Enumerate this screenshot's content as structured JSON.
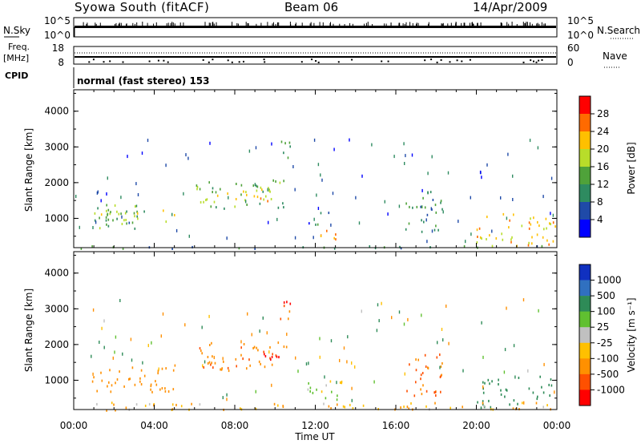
{
  "header": {
    "station": "Syowa South (fitACF)",
    "beam": "Beam 06",
    "date": "14/Apr/2009"
  },
  "status_panels": {
    "nsky_label": "N.Sky",
    "nsky_ticks": [
      "10^5",
      "10^0"
    ],
    "nsearch_label": "N.Search",
    "nsearch_ticks": [
      "10^5",
      "10^0"
    ],
    "freq_label_line1": "Freq.",
    "freq_label_line2": "[MHz]",
    "freq_ticks": [
      "18",
      "8"
    ],
    "nave_label": "Nave",
    "nave_ticks": [
      "60",
      "0"
    ],
    "cpid_label": "CPID",
    "cpid_text": "normal (fast stereo) 153"
  },
  "axes": {
    "ylabel": "Slant Range [km]",
    "xlabel": "Time UT",
    "yticks": [
      "4000",
      "3000",
      "2000",
      "1000"
    ],
    "xticks": [
      "00:00",
      "04:00",
      "08:00",
      "12:00",
      "16:00",
      "20:00",
      "00:00"
    ]
  },
  "colorbars": {
    "power": {
      "label": "Power [dB]",
      "ticks": [
        "28",
        "24",
        "20",
        "16",
        "12",
        "8",
        "4"
      ],
      "colors": [
        "#ff0000",
        "#ff6a00",
        "#ffc000",
        "#b8dd2a",
        "#4fa23a",
        "#2e8b60",
        "#1f4aa8",
        "#0000ff"
      ]
    },
    "velocity": {
      "label": "Velocity [m s⁻¹]",
      "ticks": [
        "1000",
        "500",
        "100",
        "25",
        "-25",
        "-100",
        "-500",
        "-1000"
      ],
      "colors": [
        "#1030c0",
        "#3070c0",
        "#2e8b57",
        "#60c030",
        "#c0c0c0",
        "#ffc000",
        "#ff9000",
        "#ff5000",
        "#ff0000"
      ]
    }
  },
  "chart_data": [
    {
      "type": "heatmap",
      "title": "Power",
      "xlabel": "Time UT",
      "ylabel": "Slant Range [km]",
      "xlim": [
        "00:00",
        "24:00"
      ],
      "ylim": [
        180,
        4600
      ],
      "colorbar_range": [
        0,
        30
      ],
      "regions": [
        {
          "t0": 0.9,
          "t1": 3.3,
          "r0": 700,
          "r1": 1450,
          "value": 12
        },
        {
          "t0": 0.8,
          "t1": 5.0,
          "r0": 900,
          "r1": 1250,
          "value": 16
        },
        {
          "t0": 6.0,
          "t1": 10.6,
          "r0": 1300,
          "r1": 2100,
          "value": 14
        },
        {
          "t0": 7.0,
          "t1": 10.0,
          "r0": 1500,
          "r1": 1850,
          "value": 20
        },
        {
          "t0": 10.2,
          "t1": 10.8,
          "r0": 2500,
          "r1": 3300,
          "value": 10
        },
        {
          "t0": 11.6,
          "t1": 13.3,
          "r0": 380,
          "r1": 700,
          "value": 22
        },
        {
          "t0": 11.5,
          "t1": 12.8,
          "r0": 800,
          "r1": 1400,
          "value": 8
        },
        {
          "t0": 16.4,
          "t1": 18.4,
          "r0": 600,
          "r1": 1800,
          "value": 10
        },
        {
          "t0": 20.0,
          "t1": 23.9,
          "r0": 250,
          "r1": 1150,
          "value": 20
        },
        {
          "t0": 0.0,
          "t1": 24.0,
          "r0": 180,
          "r1": 260,
          "value": 10
        }
      ]
    },
    {
      "type": "heatmap",
      "title": "Velocity",
      "xlabel": "Time UT",
      "ylabel": "Slant Range [km]",
      "xlim": [
        "00:00",
        "24:00"
      ],
      "ylim": [
        180,
        4600
      ],
      "colorbar_range": [
        -1000,
        1000
      ],
      "regions": [
        {
          "t0": 0.9,
          "t1": 5.0,
          "r0": 700,
          "r1": 1450,
          "value": -300
        },
        {
          "t0": 6.0,
          "t1": 10.6,
          "r0": 1300,
          "r1": 2100,
          "value": -400
        },
        {
          "t0": 8.0,
          "t1": 10.2,
          "r0": 1550,
          "r1": 1900,
          "value": -900
        },
        {
          "t0": 10.2,
          "t1": 10.8,
          "r0": 2600,
          "r1": 3300,
          "value": -800
        },
        {
          "t0": 11.6,
          "t1": 13.3,
          "r0": 380,
          "r1": 1100,
          "value": 0
        },
        {
          "t0": 16.4,
          "t1": 18.4,
          "r0": 600,
          "r1": 1800,
          "value": -600
        },
        {
          "t0": 20.0,
          "t1": 23.9,
          "r0": 250,
          "r1": 1150,
          "value": 300
        },
        {
          "t0": 0.0,
          "t1": 24.0,
          "r0": 180,
          "r1": 400,
          "value": -100
        }
      ]
    }
  ]
}
